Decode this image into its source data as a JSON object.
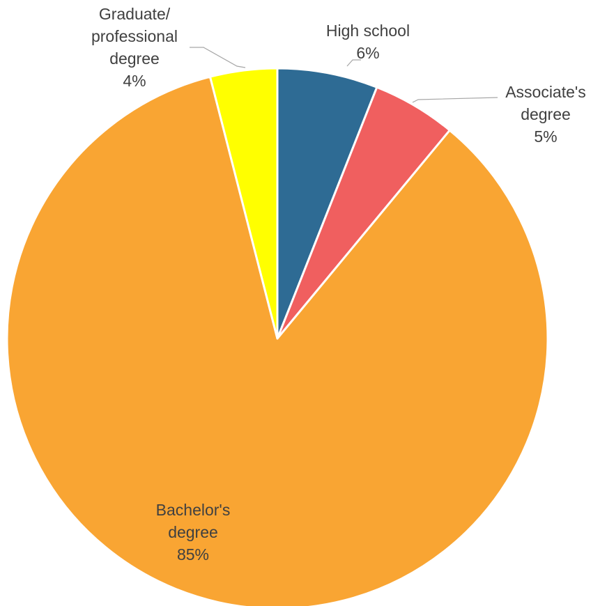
{
  "chart_data": {
    "type": "pie",
    "categories": [
      "High school",
      "Associate's degree",
      "Bachelor's degree",
      "Graduate/ professional degree"
    ],
    "values": [
      6,
      5,
      85,
      4
    ],
    "colors": [
      "#2e6b94",
      "#f05f5f",
      "#f9a533",
      "#ffff00"
    ],
    "data_labels": [
      {
        "lines": [
          "High school"
        ],
        "pct": "6%"
      },
      {
        "lines": [
          "Associate's",
          "degree"
        ],
        "pct": "5%"
      },
      {
        "lines": [
          "Bachelor's",
          "degree"
        ],
        "pct": "85%"
      },
      {
        "lines": [
          "Graduate/",
          "professional",
          "degree"
        ],
        "pct": "4%"
      }
    ],
    "legend": "none"
  }
}
